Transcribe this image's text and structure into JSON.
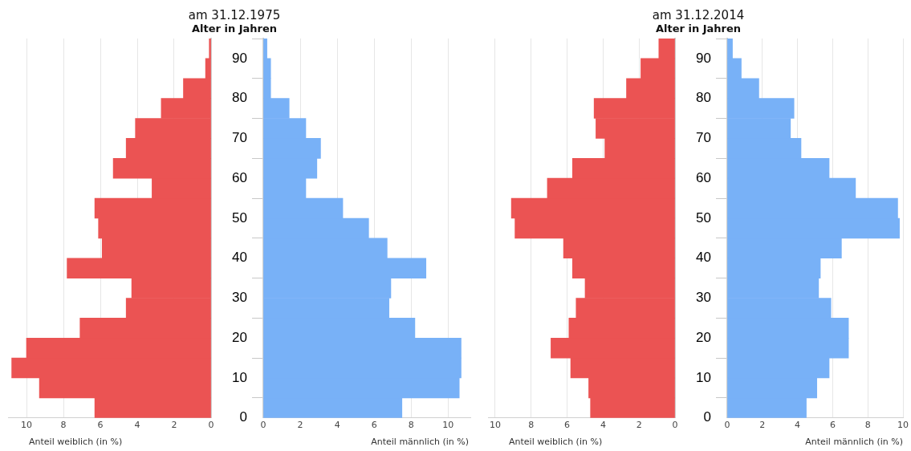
{
  "chart_data": [
    {
      "type": "histogram",
      "orientation": "horizontal",
      "xlabel": "Anteil weiblich (in %)",
      "color": "#eb5353",
      "grid": "x",
      "tick_labels": "x",
      "bins": [
        0,
        5,
        10,
        15,
        20,
        25,
        30,
        35,
        40,
        45,
        50,
        55,
        60,
        65,
        70,
        75,
        80,
        85,
        90,
        95
      ],
      "values": [
        6.3,
        9.3,
        10.8,
        10.0,
        7.1,
        4.6,
        4.3,
        7.8,
        5.9,
        6.1,
        6.3,
        3.2,
        5.3,
        4.6,
        4.1,
        2.7,
        1.5,
        0.3,
        0.1
      ],
      "xlim": [
        11,
        0
      ],
      "xticks": [
        10,
        8,
        6,
        4,
        2,
        0
      ],
      "ylim": [
        0,
        95
      ],
      "yticks": [
        0,
        10,
        20,
        30,
        40,
        50,
        60,
        70,
        80,
        90
      ]
    },
    {
      "type": "histogram",
      "orientation": "horizontal",
      "title": "am 31.12.1975",
      "subtitle": "Alter in Jahren",
      "xlabel": "Anteil männlich (in %)",
      "color": "#78b1f7",
      "grid": "x",
      "bins": [
        0,
        5,
        10,
        15,
        20,
        25,
        30,
        35,
        40,
        45,
        50,
        55,
        60,
        65,
        70,
        75,
        80,
        85,
        90,
        95
      ],
      "values": [
        7.5,
        10.6,
        10.7,
        10.7,
        8.2,
        6.8,
        6.9,
        8.8,
        6.7,
        5.7,
        4.3,
        2.3,
        2.9,
        3.1,
        2.3,
        1.4,
        0.4,
        0.4,
        0.2
      ],
      "xlim": [
        0,
        11.2
      ],
      "xticks": [
        0,
        2,
        4,
        6,
        8,
        10
      ],
      "ylim": [
        0,
        95
      ],
      "yticks": [
        0,
        10,
        20,
        30,
        40,
        50,
        60,
        70,
        80,
        90
      ]
    },
    {
      "type": "histogram",
      "orientation": "horizontal",
      "xlabel": "Anteil weiblich (in %)",
      "color": "#eb5353",
      "grid": "x",
      "tick_labels": "x",
      "bins": [
        0,
        5,
        10,
        15,
        20,
        25,
        30,
        35,
        40,
        45,
        50,
        55,
        60,
        65,
        70,
        75,
        80,
        85,
        90,
        95
      ],
      "values": [
        4.7,
        4.8,
        5.8,
        6.9,
        5.9,
        5.5,
        5.0,
        5.7,
        6.2,
        8.9,
        9.1,
        7.1,
        5.7,
        3.9,
        4.4,
        4.5,
        2.7,
        1.9,
        0.9
      ],
      "xlim": [
        10.4,
        0
      ],
      "xticks": [
        10,
        8,
        6,
        4,
        2,
        0
      ],
      "ylim": [
        0,
        95
      ],
      "yticks": [
        0,
        10,
        20,
        30,
        40,
        50,
        60,
        70,
        80,
        90
      ]
    },
    {
      "type": "histogram",
      "orientation": "horizontal",
      "title": "am 31.12.2014",
      "subtitle": "Alter in Jahren",
      "xlabel": "Anteil männlich (in %)",
      "color": "#78b1f7",
      "grid": "x",
      "bins": [
        0,
        5,
        10,
        15,
        20,
        25,
        30,
        35,
        40,
        45,
        50,
        55,
        60,
        65,
        70,
        75,
        80,
        85,
        90,
        95
      ],
      "values": [
        4.5,
        5.1,
        5.8,
        6.9,
        6.9,
        5.9,
        5.2,
        5.3,
        6.5,
        9.8,
        9.7,
        7.3,
        5.8,
        4.2,
        3.6,
        3.8,
        1.8,
        0.8,
        0.3
      ],
      "xlim": [
        0,
        10
      ],
      "xticks": [
        0,
        2,
        4,
        6,
        8,
        10
      ],
      "ylim": [
        0,
        95
      ],
      "yticks": [
        0,
        10,
        20,
        30,
        40,
        50,
        60,
        70,
        80,
        90
      ]
    }
  ]
}
